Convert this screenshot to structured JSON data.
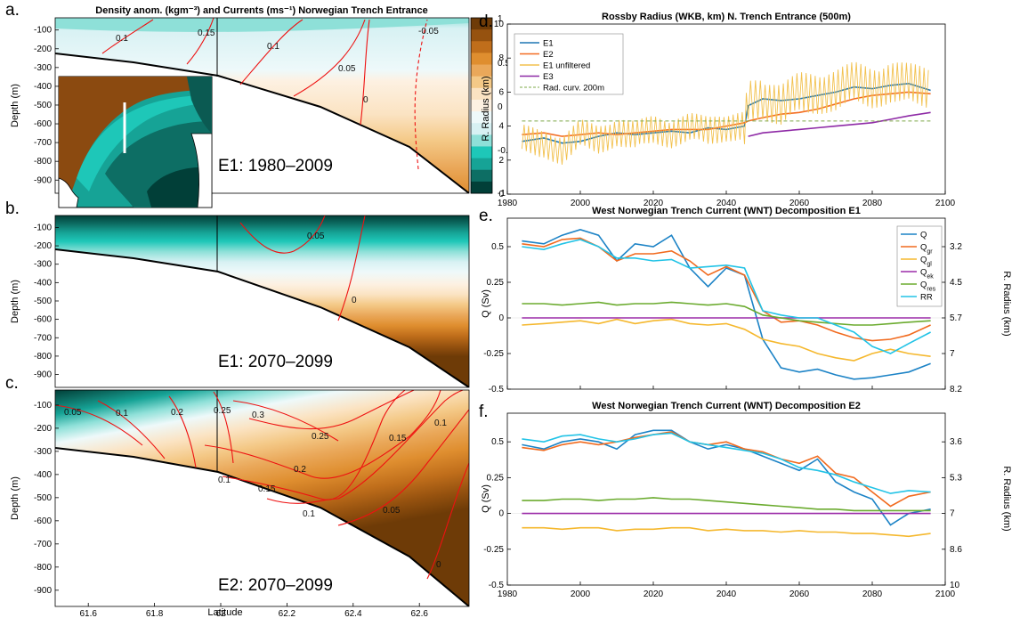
{
  "colors": {
    "scale": [
      "#013f38",
      "#0d6e64",
      "#16a396",
      "#1ec7b8",
      "#8ee0d8",
      "#d7f1f3",
      "#eef9fa",
      "#fdf1e2",
      "#fbe3c2",
      "#f4c987",
      "#eaa85a",
      "#df8e2f",
      "#c06e1b",
      "#96520f",
      "#6e3b07"
    ],
    "contour": "#e11",
    "line_E1": "#1f77b4",
    "line_E2": "#f36c21",
    "line_E1u": "#f2c14e",
    "line_E3": "#8e2aa6",
    "line_rad": "#7da84a",
    "Q": "#1c83c6",
    "Qgr": "#f16a1e",
    "Qgl": "#f5b82e",
    "Qek": "#9b2ba8",
    "Qres": "#6bab2f",
    "RR": "#22c3e6"
  },
  "panels": {
    "a": {
      "label": "a.",
      "title": "Density anom. (kgm⁻³) and Currents (ms⁻¹) Norwegian Trench Entrance",
      "caption": "E1: 1980–2009"
    },
    "b": {
      "label": "b.",
      "caption": "E1: 2070–2099"
    },
    "c": {
      "label": "c.",
      "caption": "E2: 2070–2099"
    },
    "d": {
      "label": "d.",
      "title": "Rossby Radius (WKB, km) N. Trench Entrance (500m)"
    },
    "e": {
      "label": "e.",
      "title": "West Norwegian Trench Current (WNT) Decomposition E1"
    },
    "f": {
      "label": "f.",
      "title": "West Norwegian Trench Current (WNT) Decomposition E2"
    }
  },
  "section_axes": {
    "ylabel": "Depth (m)",
    "xlabel": "Latitude",
    "yticks": [
      "-100",
      "-200",
      "-300",
      "-400",
      "-500",
      "-600",
      "-700",
      "-800",
      "-900"
    ],
    "xticks": [
      "61.6",
      "61.8",
      "62",
      "62.2",
      "62.4",
      "62.6"
    ],
    "colorbar_ticks": [
      "1",
      "0.5",
      "0",
      "-0.5",
      "-1"
    ]
  },
  "contour_labels": {
    "a": [
      "0.1",
      "0.15",
      "0.1",
      "0.05",
      "0",
      "-0.05"
    ],
    "b": [
      "0.05",
      "0"
    ],
    "c": [
      "0.05",
      "0.1",
      "0.2",
      "0.25",
      "0.3",
      "0.25",
      "0.15",
      "0.1",
      "0.2",
      "0.15",
      "0.1",
      "0.1",
      "0.05",
      "0"
    ]
  },
  "chart_data": [
    {
      "type": "line",
      "panel": "d",
      "title": "Rossby Radius (WKB, km) N. Trench Entrance (500m)",
      "ylabel": "R. Radius (km)",
      "xlim": [
        1980,
        2100
      ],
      "ylim": [
        0,
        10
      ],
      "xticks": [
        "1980",
        "2000",
        "2020",
        "2040",
        "2060",
        "2080",
        "2100"
      ],
      "yticks": [
        "0",
        "2",
        "4",
        "6",
        "8",
        "10"
      ],
      "x": [
        1984,
        1990,
        1995,
        2000,
        2005,
        2010,
        2015,
        2020,
        2025,
        2030,
        2035,
        2040,
        2045,
        2046,
        2050,
        2055,
        2060,
        2065,
        2070,
        2075,
        2080,
        2085,
        2090,
        2096
      ],
      "series": [
        {
          "name": "E1",
          "values": [
            3.1,
            3.3,
            3.0,
            3.1,
            3.4,
            3.6,
            3.5,
            3.6,
            3.7,
            3.6,
            3.9,
            3.8,
            4.0,
            5.2,
            5.6,
            5.5,
            5.6,
            5.8,
            6.0,
            6.3,
            6.2,
            6.4,
            6.5,
            6.1
          ]
        },
        {
          "name": "E2",
          "values": [
            3.5,
            3.6,
            3.4,
            3.5,
            3.6,
            3.5,
            3.6,
            3.7,
            3.8,
            3.8,
            3.8,
            4.0,
            4.2,
            4.3,
            4.5,
            4.7,
            4.8,
            5.0,
            5.3,
            5.6,
            5.8,
            5.9,
            6.0,
            5.9
          ]
        },
        {
          "name": "E1 unfiltered",
          "values": [
            3.2,
            3.0,
            2.6,
            3.5,
            3.2,
            3.7,
            3.4,
            3.8,
            3.6,
            3.9,
            3.7,
            4.0,
            4.0,
            5.4,
            5.7,
            5.2,
            5.9,
            6.0,
            6.1,
            6.5,
            6.3,
            6.6,
            6.4,
            6.3
          ]
        },
        {
          "name": "E3",
          "values": [
            null,
            null,
            null,
            null,
            null,
            null,
            null,
            null,
            null,
            null,
            null,
            null,
            null,
            3.4,
            3.6,
            3.7,
            3.8,
            3.9,
            4.0,
            4.1,
            4.2,
            4.4,
            4.6,
            4.8
          ]
        },
        {
          "name": "Rad. curv. 200m",
          "values": [
            4.3,
            4.3,
            4.3,
            4.3,
            4.3,
            4.3,
            4.3,
            4.3,
            4.3,
            4.3,
            4.3,
            4.3,
            4.3,
            4.3,
            4.3,
            4.3,
            4.3,
            4.3,
            4.3,
            4.3,
            4.3,
            4.3,
            4.3,
            4.3
          ]
        }
      ]
    },
    {
      "type": "line",
      "panel": "e",
      "title": "West Norwegian Trench Current (WNT) Decomposition E1",
      "ylabel": "Q (Sv)",
      "y2label": "R. Radius (km)",
      "xlim": [
        1980,
        2100
      ],
      "ylim": [
        -0.5,
        0.7
      ],
      "yticks": [
        "0.5",
        "0.25",
        "0",
        "-0.25",
        "-0.5"
      ],
      "y2ticks": [
        "3.2",
        "4.5",
        "5.7",
        "7",
        "8.2"
      ],
      "x": [
        1984,
        1990,
        1995,
        2000,
        2005,
        2010,
        2015,
        2020,
        2025,
        2030,
        2035,
        2040,
        2045,
        2050,
        2055,
        2060,
        2065,
        2070,
        2075,
        2080,
        2085,
        2090,
        2096
      ],
      "series": [
        {
          "name": "Q",
          "values": [
            0.54,
            0.52,
            0.58,
            0.62,
            0.58,
            0.4,
            0.52,
            0.5,
            0.58,
            0.35,
            0.22,
            0.35,
            0.3,
            -0.15,
            -0.35,
            -0.38,
            -0.36,
            -0.4,
            -0.43,
            -0.42,
            -0.4,
            -0.38,
            -0.32
          ]
        },
        {
          "name": "Q_gr",
          "values": [
            0.52,
            0.5,
            0.55,
            0.56,
            0.5,
            0.4,
            0.45,
            0.45,
            0.47,
            0.4,
            0.3,
            0.36,
            0.3,
            0.05,
            -0.03,
            -0.02,
            -0.05,
            -0.1,
            -0.14,
            -0.16,
            -0.15,
            -0.12,
            -0.05
          ]
        },
        {
          "name": "Q_gl",
          "values": [
            -0.05,
            -0.04,
            -0.03,
            -0.02,
            -0.04,
            -0.01,
            -0.04,
            -0.02,
            -0.01,
            -0.04,
            -0.05,
            -0.04,
            -0.08,
            -0.15,
            -0.18,
            -0.2,
            -0.25,
            -0.28,
            -0.3,
            -0.25,
            -0.22,
            -0.25,
            -0.27
          ]
        },
        {
          "name": "Q_ek",
          "values": [
            0,
            0,
            0,
            0,
            0,
            0,
            0,
            0,
            0,
            0,
            0,
            0,
            0,
            0,
            0,
            0,
            0,
            0,
            0,
            0,
            0,
            0,
            0
          ]
        },
        {
          "name": "Q_res",
          "values": [
            0.1,
            0.1,
            0.09,
            0.1,
            0.11,
            0.09,
            0.1,
            0.1,
            0.11,
            0.1,
            0.09,
            0.1,
            0.08,
            0.02,
            0.0,
            -0.02,
            -0.03,
            -0.04,
            -0.05,
            -0.05,
            -0.04,
            -0.03,
            -0.02
          ]
        },
        {
          "name": "RR",
          "values": [
            0.5,
            0.48,
            0.52,
            0.55,
            0.5,
            0.42,
            0.42,
            0.4,
            0.41,
            0.35,
            0.36,
            0.37,
            0.35,
            0.05,
            0.02,
            0.0,
            0.0,
            -0.05,
            -0.1,
            -0.2,
            -0.25,
            -0.18,
            -0.1
          ]
        }
      ]
    },
    {
      "type": "line",
      "panel": "f",
      "title": "West Norwegian Trench Current (WNT) Decomposition E2",
      "ylabel": "Q (Sv)",
      "y2label": "R. Radius (km)",
      "xlim": [
        1980,
        2100
      ],
      "ylim": [
        -0.5,
        0.7
      ],
      "xticks": [
        "1980",
        "2000",
        "2020",
        "2040",
        "2060",
        "2080",
        "2100"
      ],
      "yticks": [
        "0.5",
        "0.25",
        "0",
        "-0.25",
        "-0.5"
      ],
      "y2ticks": [
        "3.6",
        "5.3",
        "7",
        "8.6",
        "10"
      ],
      "x": [
        1984,
        1990,
        1995,
        2000,
        2005,
        2010,
        2015,
        2020,
        2025,
        2030,
        2035,
        2040,
        2045,
        2050,
        2055,
        2060,
        2065,
        2070,
        2075,
        2080,
        2085,
        2090,
        2096
      ],
      "series": [
        {
          "name": "Q",
          "values": [
            0.48,
            0.45,
            0.5,
            0.52,
            0.5,
            0.45,
            0.55,
            0.58,
            0.58,
            0.5,
            0.45,
            0.48,
            0.45,
            0.4,
            0.35,
            0.3,
            0.38,
            0.22,
            0.15,
            0.1,
            -0.08,
            0.0,
            0.03
          ]
        },
        {
          "name": "Q_gr",
          "values": [
            0.46,
            0.44,
            0.48,
            0.5,
            0.48,
            0.5,
            0.53,
            0.55,
            0.57,
            0.5,
            0.48,
            0.5,
            0.45,
            0.43,
            0.38,
            0.35,
            0.4,
            0.28,
            0.25,
            0.15,
            0.05,
            0.12,
            0.15
          ]
        },
        {
          "name": "Q_gl",
          "values": [
            -0.1,
            -0.1,
            -0.11,
            -0.1,
            -0.1,
            -0.12,
            -0.11,
            -0.11,
            -0.1,
            -0.1,
            -0.12,
            -0.11,
            -0.12,
            -0.12,
            -0.13,
            -0.12,
            -0.13,
            -0.13,
            -0.14,
            -0.14,
            -0.15,
            -0.16,
            -0.14
          ]
        },
        {
          "name": "Q_ek",
          "values": [
            0,
            0,
            0,
            0,
            0,
            0,
            0,
            0,
            0,
            0,
            0,
            0,
            0,
            0,
            0,
            0,
            0,
            0,
            0,
            0,
            0,
            0,
            0
          ]
        },
        {
          "name": "Q_res",
          "values": [
            0.09,
            0.09,
            0.1,
            0.1,
            0.09,
            0.1,
            0.1,
            0.11,
            0.1,
            0.1,
            0.09,
            0.08,
            0.07,
            0.06,
            0.05,
            0.04,
            0.03,
            0.03,
            0.02,
            0.02,
            0.02,
            0.02,
            0.02
          ]
        },
        {
          "name": "RR",
          "values": [
            0.52,
            0.5,
            0.54,
            0.55,
            0.52,
            0.5,
            0.52,
            0.55,
            0.56,
            0.5,
            0.48,
            0.46,
            0.44,
            0.42,
            0.38,
            0.32,
            0.3,
            0.27,
            0.22,
            0.18,
            0.14,
            0.16,
            0.15
          ]
        }
      ]
    }
  ]
}
